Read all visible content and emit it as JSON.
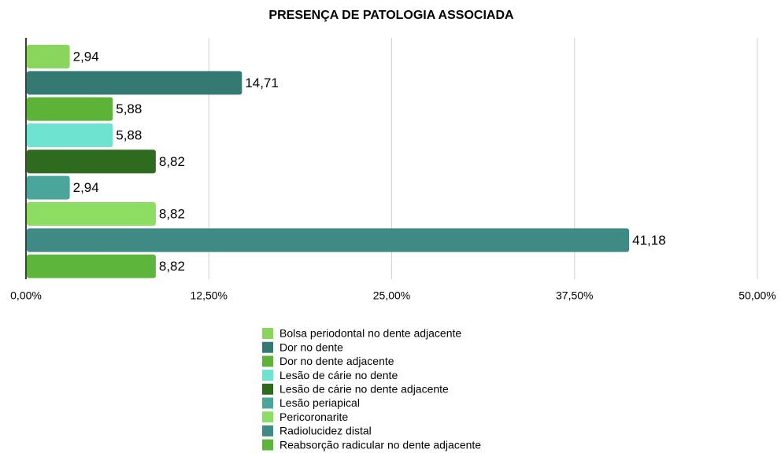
{
  "chart_data": {
    "type": "bar",
    "orientation": "horizontal",
    "title": "PRESENÇA DE PATOLOGIA ASSOCIADA",
    "categories": [
      "Bolsa periodontal no dente adjacente",
      "Dor no dente",
      "Dor no dente adjacente",
      "Lesão de cárie no dente",
      "Lesão de cárie no dente adjacente",
      "Lesão periapical",
      "Pericoronarite",
      "Radiolucidez distal",
      "Reabsorção radicular no dente adjacente"
    ],
    "values": [
      2.94,
      14.71,
      5.88,
      5.88,
      8.82,
      2.94,
      8.82,
      41.18,
      8.82
    ],
    "value_labels": [
      "2,94",
      "14,71",
      "5,88",
      "5,88",
      "8,82",
      "2,94",
      "8,82",
      "41,18",
      "8,82"
    ],
    "colors": [
      "#8ad65c",
      "#357a72",
      "#5cb338",
      "#6ee3cf",
      "#2e6b1f",
      "#4aa69b",
      "#8edd63",
      "#3f8a84",
      "#5db63b"
    ],
    "xlim": [
      0,
      50
    ],
    "xticks": [
      {
        "value": 0,
        "label": "0,00%"
      },
      {
        "value": 12.5,
        "label": "12,50%"
      },
      {
        "value": 25,
        "label": "25,00%"
      },
      {
        "value": 37.5,
        "label": "37,50%"
      },
      {
        "value": 50,
        "label": "50,00%"
      }
    ],
    "grid": true,
    "legend": "bottom"
  }
}
